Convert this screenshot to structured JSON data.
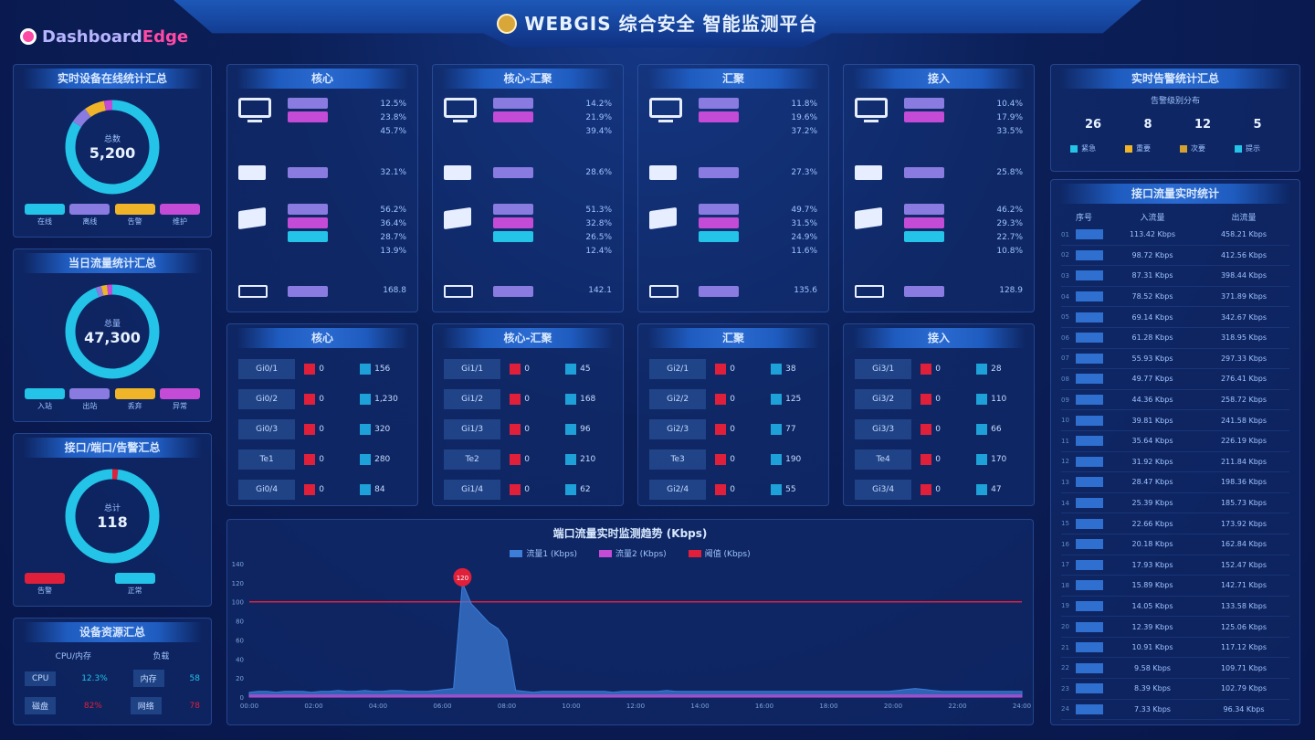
{
  "logo": {
    "part1": "Dashboard",
    "part2": "Edge"
  },
  "header": {
    "title": "WEBGIS 综合安全 智能监测平台"
  },
  "left_panels": [
    {
      "title": "实时设备在线统计汇总",
      "center_label": "总数",
      "center_value": "5,200",
      "legend": [
        {
          "label": "在线",
          "color": "#23c4e8"
        },
        {
          "label": "离线",
          "color": "#8a7be0"
        },
        {
          "label": "告警",
          "color": "#f0b429"
        },
        {
          "label": "维护",
          "color": "#c34bd6"
        }
      ],
      "values": [
        0.84,
        0.06,
        0.07,
        0.03
      ]
    },
    {
      "title": "当日流量统计汇总",
      "center_label": "总量",
      "center_value": "47,300",
      "legend": [
        {
          "label": "入站",
          "color": "#23c4e8"
        },
        {
          "label": "出站",
          "color": "#8a7be0"
        },
        {
          "label": "丢弃",
          "color": "#f0b429"
        },
        {
          "label": "异常",
          "color": "#c34bd6"
        }
      ],
      "values": [
        0.94,
        0.02,
        0.02,
        0.02
      ]
    },
    {
      "title": "接口/端口/告警汇总",
      "center_label": "总计",
      "center_value": "118",
      "legend": [
        {
          "label": "告警",
          "color": "#e0203a"
        },
        {
          "label": "",
          "color": "transparent"
        },
        {
          "label": "正常",
          "color": "#23c4e8"
        },
        {
          "label": "",
          "color": "transparent"
        }
      ],
      "values": [
        0.02,
        0,
        0.98,
        0
      ]
    }
  ],
  "bottom_left": {
    "title": "设备资源汇总",
    "headers": [
      "CPU/内存",
      "负载"
    ],
    "rows": [
      {
        "name": "CPU",
        "val1": "12.3%",
        "name2": "内存",
        "val2": "58"
      },
      {
        "name": "磁盘",
        "val1": "82%",
        "name2": "网络",
        "val2": "78"
      }
    ]
  },
  "device_cols": [
    {
      "title": "核心",
      "cpu": [
        "12.5%",
        "23.8%",
        "45.7%"
      ],
      "mem": "32.1%",
      "disk": [
        "56.2%",
        "36.4%",
        "28.7%",
        "13.9%"
      ],
      "net": "168.8"
    },
    {
      "title": "核心-汇聚",
      "cpu": [
        "14.2%",
        "21.9%",
        "39.4%"
      ],
      "mem": "28.6%",
      "disk": [
        "51.3%",
        "32.8%",
        "26.5%",
        "12.4%"
      ],
      "net": "142.1"
    },
    {
      "title": "汇聚",
      "cpu": [
        "11.8%",
        "19.6%",
        "37.2%"
      ],
      "mem": "27.3%",
      "disk": [
        "49.7%",
        "31.5%",
        "24.9%",
        "11.6%"
      ],
      "net": "135.6"
    },
    {
      "title": "接入",
      "cpu": [
        "10.4%",
        "17.9%",
        "33.5%"
      ],
      "mem": "25.8%",
      "disk": [
        "46.2%",
        "29.3%",
        "22.7%",
        "10.8%"
      ],
      "net": "128.9"
    }
  ],
  "stat_cols": [
    {
      "title": "核心",
      "rows": [
        [
          "Gi0/1",
          "0",
          "156"
        ],
        [
          "Gi0/2",
          "0",
          "1,230"
        ],
        [
          "Gi0/3",
          "0",
          "320"
        ],
        [
          "Te1",
          "0",
          "280"
        ],
        [
          "Gi0/4",
          "0",
          "84"
        ]
      ]
    },
    {
      "title": "核心-汇聚",
      "rows": [
        [
          "Gi1/1",
          "0",
          "45"
        ],
        [
          "Gi1/2",
          "0",
          "168"
        ],
        [
          "Gi1/3",
          "0",
          "96"
        ],
        [
          "Te2",
          "0",
          "210"
        ],
        [
          "Gi1/4",
          "0",
          "62"
        ]
      ]
    },
    {
      "title": "汇聚",
      "rows": [
        [
          "Gi2/1",
          "0",
          "38"
        ],
        [
          "Gi2/2",
          "0",
          "125"
        ],
        [
          "Gi2/3",
          "0",
          "77"
        ],
        [
          "Te3",
          "0",
          "190"
        ],
        [
          "Gi2/4",
          "0",
          "55"
        ]
      ]
    },
    {
      "title": "接入",
      "rows": [
        [
          "Gi3/1",
          "0",
          "28"
        ],
        [
          "Gi3/2",
          "0",
          "110"
        ],
        [
          "Gi3/3",
          "0",
          "66"
        ],
        [
          "Te4",
          "0",
          "170"
        ],
        [
          "Gi3/4",
          "0",
          "47"
        ]
      ]
    }
  ],
  "right_top": {
    "title": "实时告警统计汇总",
    "subtitle": "告警级别分布",
    "counts": [
      "26",
      "8",
      "12",
      "5"
    ],
    "legend": [
      {
        "label": "紧急",
        "color": "#23c4e8"
      },
      {
        "label": "重要",
        "color": "#f0b429"
      },
      {
        "label": "次要",
        "color": "#d2a132"
      },
      {
        "label": "提示",
        "color": "#23c4e8"
      }
    ]
  },
  "right_table": {
    "title": "接口流量实时统计",
    "headers": [
      "序号",
      "入流量",
      "出流量"
    ],
    "rows": [
      [
        "01",
        "113.42 Kbps",
        "458.21 Kbps"
      ],
      [
        "02",
        "98.72 Kbps",
        "412.56 Kbps"
      ],
      [
        "03",
        "87.31 Kbps",
        "398.44 Kbps"
      ],
      [
        "04",
        "78.52 Kbps",
        "371.89 Kbps"
      ],
      [
        "05",
        "69.14 Kbps",
        "342.67 Kbps"
      ],
      [
        "06",
        "61.28 Kbps",
        "318.95 Kbps"
      ],
      [
        "07",
        "55.93 Kbps",
        "297.33 Kbps"
      ],
      [
        "08",
        "49.77 Kbps",
        "276.41 Kbps"
      ],
      [
        "09",
        "44.36 Kbps",
        "258.72 Kbps"
      ],
      [
        "10",
        "39.81 Kbps",
        "241.58 Kbps"
      ],
      [
        "11",
        "35.64 Kbps",
        "226.19 Kbps"
      ],
      [
        "12",
        "31.92 Kbps",
        "211.84 Kbps"
      ],
      [
        "13",
        "28.47 Kbps",
        "198.36 Kbps"
      ],
      [
        "14",
        "25.39 Kbps",
        "185.73 Kbps"
      ],
      [
        "15",
        "22.66 Kbps",
        "173.92 Kbps"
      ],
      [
        "16",
        "20.18 Kbps",
        "162.84 Kbps"
      ],
      [
        "17",
        "17.93 Kbps",
        "152.47 Kbps"
      ],
      [
        "18",
        "15.89 Kbps",
        "142.71 Kbps"
      ],
      [
        "19",
        "14.05 Kbps",
        "133.58 Kbps"
      ],
      [
        "20",
        "12.39 Kbps",
        "125.06 Kbps"
      ],
      [
        "21",
        "10.91 Kbps",
        "117.12 Kbps"
      ],
      [
        "22",
        "9.58 Kbps",
        "109.71 Kbps"
      ],
      [
        "23",
        "8.39 Kbps",
        "102.79 Kbps"
      ],
      [
        "24",
        "7.33 Kbps",
        "96.34 Kbps"
      ]
    ]
  },
  "chart_data": {
    "type": "area",
    "title": "端口流量实时监测趋势 (Kbps)",
    "series": [
      {
        "name": "流量1 (Kbps)",
        "color": "#3d7ed8",
        "values": [
          5,
          6,
          6,
          5,
          6,
          6,
          6,
          5,
          6,
          6,
          7,
          6,
          6,
          7,
          6,
          6,
          7,
          7,
          6,
          6,
          6,
          7,
          8,
          9,
          120,
          98,
          88,
          78,
          72,
          60,
          7,
          6,
          5,
          6,
          6,
          6,
          6,
          6,
          6,
          6,
          6,
          5,
          6,
          6,
          6,
          6,
          6,
          7,
          6,
          6,
          6,
          6,
          6,
          6,
          6,
          6,
          6,
          6,
          6,
          6,
          6,
          6,
          6,
          6,
          6,
          6,
          6,
          6,
          6,
          6,
          6,
          6,
          6,
          7,
          8,
          9,
          8,
          7,
          6,
          6,
          6,
          6,
          6,
          6,
          6,
          6,
          6,
          6
        ]
      },
      {
        "name": "流量2 (Kbps)",
        "color": "#c34bd6",
        "values": [
          2,
          2,
          2,
          2,
          2,
          2,
          2,
          2,
          2,
          2,
          2,
          2,
          2,
          2,
          2,
          2,
          2,
          2,
          2,
          2,
          2,
          2,
          2,
          2,
          2,
          2,
          2,
          2,
          2,
          2,
          2,
          2,
          2,
          2,
          2,
          2,
          2,
          2,
          2,
          2,
          2,
          2,
          2,
          2,
          2,
          2,
          2,
          2,
          2,
          2,
          2,
          2,
          2,
          2,
          2,
          2,
          2,
          2,
          2,
          2,
          2,
          2,
          2,
          2,
          2,
          2,
          2,
          2,
          2,
          2,
          2,
          2,
          2,
          2,
          2,
          2,
          2,
          2,
          2,
          2,
          2,
          2,
          2,
          2,
          2,
          2,
          2,
          2
        ]
      },
      {
        "name": "阈值 (Kbps)",
        "color": "#e0203a",
        "values": [
          100
        ]
      }
    ],
    "x_labels": [
      "00:00",
      "02:00",
      "04:00",
      "06:00",
      "08:00",
      "10:00",
      "12:00",
      "14:00",
      "16:00",
      "18:00",
      "20:00",
      "22:00",
      "24:00"
    ],
    "y_ticks": [
      "0",
      "20",
      "40",
      "60",
      "80",
      "100",
      "120",
      "140"
    ],
    "ylim": [
      0,
      140
    ],
    "peak_label": "120"
  }
}
